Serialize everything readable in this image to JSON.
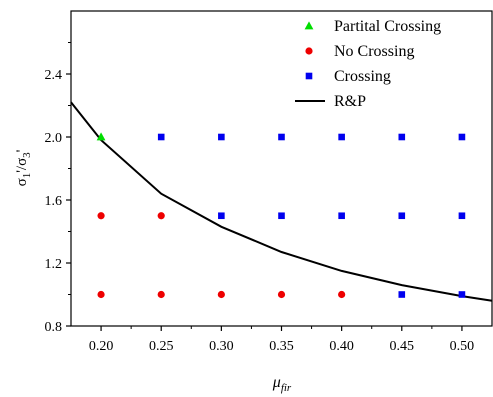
{
  "chart_data": {
    "type": "scatter",
    "xlabel": "μ_fir",
    "ylabel": "σ1'/σ3'",
    "xlim": [
      0.175,
      0.525
    ],
    "ylim": [
      0.8,
      2.8
    ],
    "xticks": [
      "0.20",
      "0.25",
      "0.30",
      "0.35",
      "0.40",
      "0.45",
      "0.50"
    ],
    "xtick_values": [
      0.2,
      0.25,
      0.3,
      0.35,
      0.4,
      0.45,
      0.5
    ],
    "yticks": [
      "0.8",
      "1.2",
      "1.6",
      "2.0",
      "2.4"
    ],
    "ytick_values": [
      0.8,
      1.2,
      1.6,
      2.0,
      2.4
    ],
    "grid": false,
    "legend_position": "top-right",
    "series": [
      {
        "name": "Partital Crossing",
        "marker": "triangle",
        "color": "#00dd00",
        "points": [
          [
            0.2,
            2.0
          ]
        ]
      },
      {
        "name": "No Crossing",
        "marker": "circle",
        "color": "#ee0000",
        "points": [
          [
            0.2,
            1.5
          ],
          [
            0.25,
            1.5
          ],
          [
            0.2,
            1.0
          ],
          [
            0.25,
            1.0
          ],
          [
            0.3,
            1.0
          ],
          [
            0.35,
            1.0
          ],
          [
            0.4,
            1.0
          ]
        ]
      },
      {
        "name": "Crossing",
        "marker": "square",
        "color": "#0000ee",
        "points": [
          [
            0.25,
            2.0
          ],
          [
            0.3,
            2.0
          ],
          [
            0.35,
            2.0
          ],
          [
            0.4,
            2.0
          ],
          [
            0.45,
            2.0
          ],
          [
            0.5,
            2.0
          ],
          [
            0.3,
            1.5
          ],
          [
            0.35,
            1.5
          ],
          [
            0.4,
            1.5
          ],
          [
            0.45,
            1.5
          ],
          [
            0.5,
            1.5
          ],
          [
            0.45,
            1.0
          ],
          [
            0.5,
            1.0
          ]
        ]
      },
      {
        "name": "R&P",
        "type": "line",
        "color": "#000000",
        "points": [
          [
            0.175,
            2.22
          ],
          [
            0.2,
            1.98
          ],
          [
            0.25,
            1.64
          ],
          [
            0.3,
            1.43
          ],
          [
            0.35,
            1.27
          ],
          [
            0.4,
            1.15
          ],
          [
            0.45,
            1.06
          ],
          [
            0.5,
            0.99
          ],
          [
            0.525,
            0.96
          ]
        ]
      }
    ]
  }
}
